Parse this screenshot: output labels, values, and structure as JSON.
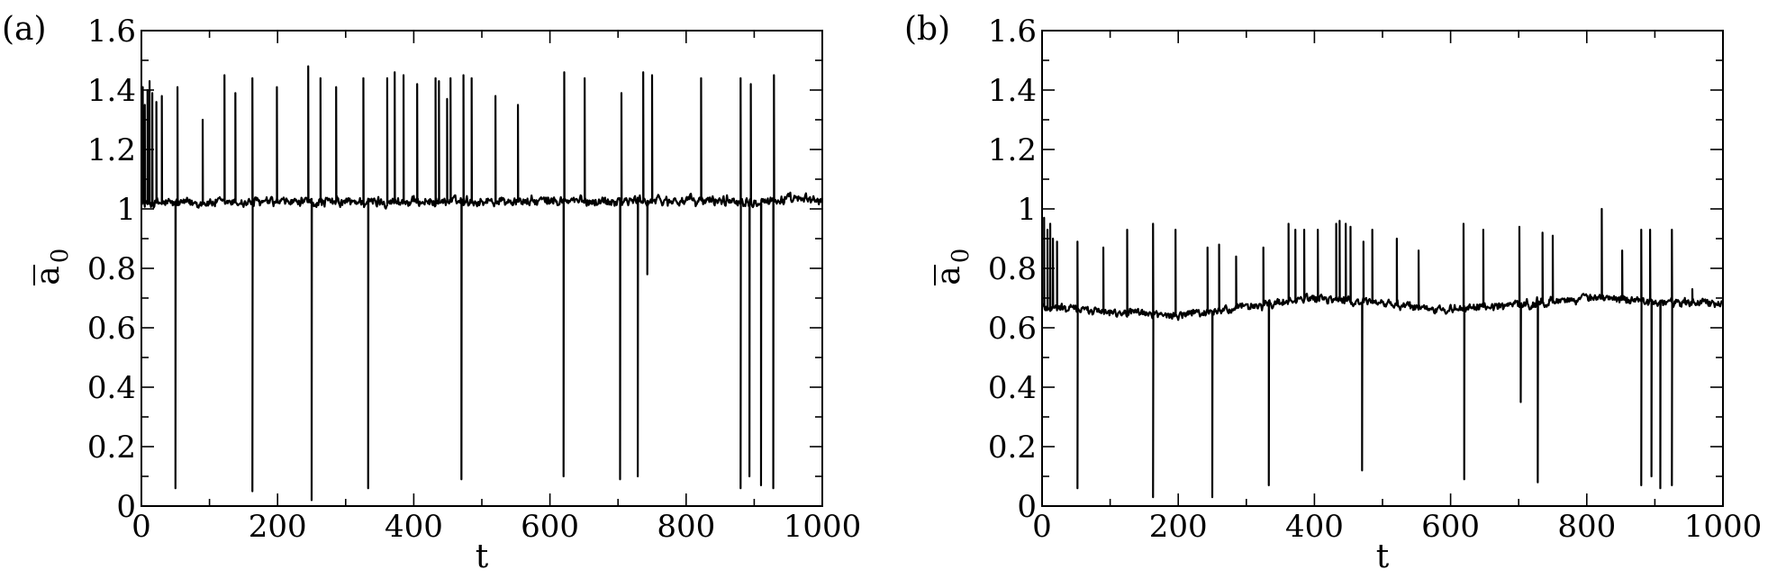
{
  "chart_data": [
    {
      "type": "line",
      "panel_label": "(a)",
      "xlabel": "t",
      "ylabel": "a",
      "ylabel_subscript": "0",
      "ylabel_overbar": true,
      "xlim": [
        0,
        1000
      ],
      "ylim": [
        0,
        1.6
      ],
      "x_ticks": [
        0,
        200,
        400,
        600,
        800,
        1000
      ],
      "x_tick_labels": [
        "0",
        "200",
        "400",
        "600",
        "800",
        "1000"
      ],
      "y_ticks": [
        0,
        0.2,
        0.4,
        0.6,
        0.8,
        1.0,
        1.2,
        1.4,
        1.6
      ],
      "y_tick_labels": [
        "0",
        "0.2",
        "0.4",
        "0.6",
        "0.8",
        "1",
        "1.2",
        "1.4",
        "1.6"
      ],
      "grid": false,
      "legend": "none",
      "series": [
        {
          "color": "#000000",
          "baseline": 1.02,
          "baseline_trend": [
            [
              0,
              1.02
            ],
            [
              1000,
              1.03
            ]
          ],
          "noise_amplitude": 0.035,
          "spikes_up": [
            [
              2,
              1.41
            ],
            [
              5,
              1.35
            ],
            [
              9,
              1.4
            ],
            [
              12,
              1.43
            ],
            [
              16,
              1.39
            ],
            [
              22,
              1.36
            ],
            [
              30,
              1.38
            ],
            [
              53,
              1.41
            ],
            [
              90,
              1.3
            ],
            [
              122,
              1.45
            ],
            [
              138,
              1.39
            ],
            [
              163,
              1.44
            ],
            [
              199,
              1.41
            ],
            [
              245,
              1.48
            ],
            [
              263,
              1.44
            ],
            [
              286,
              1.41
            ],
            [
              326,
              1.44
            ],
            [
              361,
              1.44
            ],
            [
              372,
              1.46
            ],
            [
              385,
              1.45
            ],
            [
              405,
              1.42
            ],
            [
              432,
              1.44
            ],
            [
              437,
              1.43
            ],
            [
              449,
              1.37
            ],
            [
              454,
              1.44
            ],
            [
              473,
              1.45
            ],
            [
              485,
              1.44
            ],
            [
              520,
              1.38
            ],
            [
              553,
              1.35
            ],
            [
              621,
              1.46
            ],
            [
              651,
              1.44
            ],
            [
              705,
              1.39
            ],
            [
              737,
              1.46
            ],
            [
              750,
              1.45
            ],
            [
              822,
              1.44
            ],
            [
              880,
              1.44
            ],
            [
              895,
              1.42
            ],
            [
              929,
              1.45
            ]
          ],
          "spikes_down": [
            [
              50,
              0.06
            ],
            [
              163,
              0.05
            ],
            [
              250,
              0.02
            ],
            [
              333,
              0.06
            ],
            [
              470,
              0.09
            ],
            [
              620,
              0.1
            ],
            [
              703,
              0.09
            ],
            [
              729,
              0.1
            ],
            [
              743,
              0.78
            ],
            [
              880,
              0.06
            ],
            [
              893,
              0.1
            ],
            [
              910,
              0.07
            ],
            [
              928,
              0.06
            ]
          ]
        }
      ]
    },
    {
      "type": "line",
      "panel_label": "(b)",
      "xlabel": "t",
      "ylabel": "a",
      "ylabel_subscript": "0",
      "ylabel_overbar": true,
      "xlim": [
        0,
        1000
      ],
      "ylim": [
        0,
        1.6
      ],
      "x_ticks": [
        0,
        200,
        400,
        600,
        800,
        1000
      ],
      "x_tick_labels": [
        "0",
        "200",
        "400",
        "600",
        "800",
        "1000"
      ],
      "y_ticks": [
        0,
        0.2,
        0.4,
        0.6,
        0.8,
        1.0,
        1.2,
        1.4,
        1.6
      ],
      "y_tick_labels": [
        "0",
        "0.2",
        "0.4",
        "0.6",
        "0.8",
        "1",
        "1.2",
        "1.4",
        "1.6"
      ],
      "grid": false,
      "legend": "none",
      "series": [
        {
          "color": "#000000",
          "baseline": 0.66,
          "baseline_trend": [
            [
              0,
              0.67
            ],
            [
              200,
              0.64
            ],
            [
              400,
              0.7
            ],
            [
              600,
              0.66
            ],
            [
              800,
              0.7
            ],
            [
              1000,
              0.68
            ]
          ],
          "noise_amplitude": 0.03,
          "spikes_up": [
            [
              3,
              0.97
            ],
            [
              8,
              0.93
            ],
            [
              12,
              0.95
            ],
            [
              16,
              0.9
            ],
            [
              22,
              0.89
            ],
            [
              52,
              0.89
            ],
            [
              90,
              0.87
            ],
            [
              125,
              0.93
            ],
            [
              163,
              0.95
            ],
            [
              196,
              0.93
            ],
            [
              243,
              0.87
            ],
            [
              260,
              0.88
            ],
            [
              285,
              0.84
            ],
            [
              325,
              0.87
            ],
            [
              362,
              0.95
            ],
            [
              372,
              0.93
            ],
            [
              385,
              0.93
            ],
            [
              405,
              0.93
            ],
            [
              432,
              0.95
            ],
            [
              437,
              0.96
            ],
            [
              446,
              0.95
            ],
            [
              453,
              0.94
            ],
            [
              472,
              0.89
            ],
            [
              485,
              0.93
            ],
            [
              521,
              0.9
            ],
            [
              553,
              0.86
            ],
            [
              619,
              0.95
            ],
            [
              648,
              0.93
            ],
            [
              701,
              0.94
            ],
            [
              735,
              0.92
            ],
            [
              750,
              0.91
            ],
            [
              822,
              1.0
            ],
            [
              852,
              0.86
            ],
            [
              880,
              0.93
            ],
            [
              893,
              0.93
            ],
            [
              925,
              0.93
            ],
            [
              955,
              0.73
            ]
          ],
          "spikes_down": [
            [
              52,
              0.06
            ],
            [
              163,
              0.03
            ],
            [
              250,
              0.03
            ],
            [
              333,
              0.07
            ],
            [
              470,
              0.12
            ],
            [
              620,
              0.09
            ],
            [
              703,
              0.35
            ],
            [
              728,
              0.08
            ],
            [
              880,
              0.07
            ],
            [
              895,
              0.1
            ],
            [
              908,
              0.06
            ],
            [
              925,
              0.07
            ]
          ]
        }
      ]
    }
  ]
}
